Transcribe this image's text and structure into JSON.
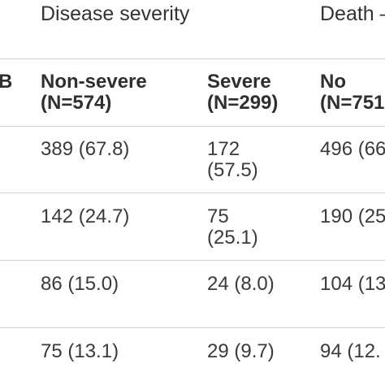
{
  "table": {
    "group_headers": {
      "disease_severity": "Disease severity",
      "death": "Death –"
    },
    "stub_header_fragment": "B",
    "columns": {
      "non_severe": {
        "label": "Non-severe",
        "n": "(N=574)"
      },
      "severe": {
        "label": "Severe",
        "n": "(N=299)"
      },
      "no": {
        "label": "No",
        "n": "(N=751"
      }
    },
    "rows": [
      {
        "non_severe": "389 (67.8)",
        "severe": [
          "172",
          "(57.5)"
        ],
        "no": "496 (66"
      },
      {
        "non_severe": "142 (24.7)",
        "severe": [
          "75",
          "(25.1)"
        ],
        "no": "190 (25"
      },
      {
        "non_severe": "86 (15.0)",
        "severe": [
          "24 (8.0)"
        ],
        "no": "104 (13"
      },
      {
        "non_severe": "75 (13.1)",
        "severe": [
          "29 (9.7)"
        ],
        "no": "94 (12."
      }
    ]
  }
}
